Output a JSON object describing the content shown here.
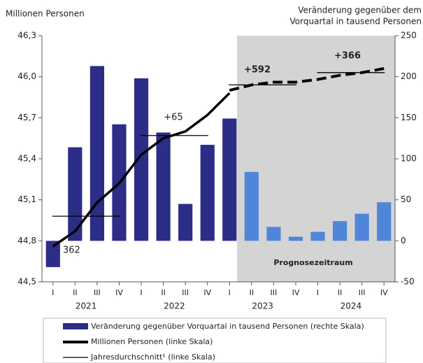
{
  "chart_data": {
    "type": "bar_line",
    "y_label": "Millionen Personen",
    "y2_label": [
      "Veränderung gegenüber dem",
      "Vorquartal in tausend Personen"
    ],
    "categories": [
      "I",
      "II",
      "III",
      "IV",
      "I",
      "II",
      "III",
      "IV",
      "I",
      "II",
      "III",
      "IV",
      "I",
      "II",
      "III",
      "IV"
    ],
    "years": [
      "2021",
      "2022",
      "2023",
      "2024"
    ],
    "ylim": [
      44.5,
      46.3
    ],
    "yticks": [
      {
        "value": 44.5,
        "label": "44,5"
      },
      {
        "value": 44.8,
        "label": "44,8"
      },
      {
        "value": 45.1,
        "label": "45,1"
      },
      {
        "value": 45.4,
        "label": "45,4"
      },
      {
        "value": 45.7,
        "label": "45,7"
      },
      {
        "value": 46.0,
        "label": "46,0"
      },
      {
        "value": 46.3,
        "label": "46,3"
      }
    ],
    "y2lim": [
      -50,
      250
    ],
    "y2ticks": [
      -50,
      0,
      50,
      100,
      150,
      200,
      250
    ],
    "bars": {
      "name": "Veränderung gegenüber Vorquartal in tausend Personen (rechte Skala)",
      "axis": "y2",
      "values": [
        -32,
        114,
        213,
        142,
        198,
        132,
        45,
        117,
        149,
        84,
        17,
        5,
        11,
        24,
        33,
        47
      ],
      "colors": [
        "#2b2d87",
        "#2b2d87",
        "#2b2d87",
        "#2b2d87",
        "#2b2d87",
        "#2b2d87",
        "#2b2d87",
        "#2b2d87",
        "#2b2d87",
        "#4f86d9",
        "#4f86d9",
        "#4f86d9",
        "#4f86d9",
        "#4f86d9",
        "#4f86d9",
        "#4f86d9"
      ]
    },
    "series": [
      {
        "name": "Millionen Personen (linke Skala)",
        "color": "#000000",
        "values": [
          44.76,
          44.87,
          45.08,
          45.22,
          45.43,
          45.55,
          45.6,
          45.72,
          45.88,
          null,
          null,
          null,
          null,
          null,
          null,
          null
        ]
      },
      {
        "color": "#000000",
        "dashed": true,
        "values": [
          null,
          null,
          null,
          null,
          null,
          null,
          null,
          null,
          45.9,
          45.94,
          45.96,
          45.96,
          45.98,
          46.01,
          46.03,
          46.06
        ]
      }
    ],
    "annual_average": {
      "name": "Jahresdurchschnitt¹ (linke Skala)",
      "values": [
        44.98,
        45.57,
        45.94,
        46.03
      ]
    },
    "annotations": [
      "- 362",
      "+65",
      "+592",
      "+366"
    ],
    "shade_label": "Prognosezeitraum"
  }
}
